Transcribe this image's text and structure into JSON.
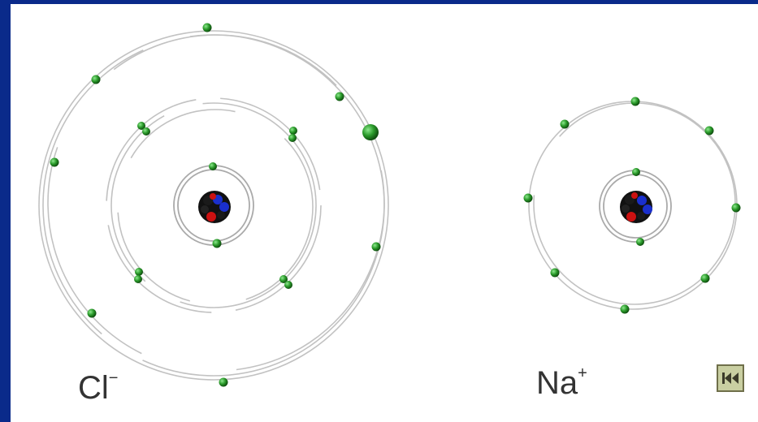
{
  "diagram": {
    "chlorine": {
      "symbol": "Cl",
      "charge": "−",
      "shells": [
        2,
        8,
        8
      ]
    },
    "sodium": {
      "symbol": "Na",
      "charge": "+",
      "shells": [
        2,
        8
      ]
    }
  },
  "controls": {
    "back_button_icon": "skip-back-icon"
  },
  "colors": {
    "background": "#0a2a8a",
    "electron": "#1f8a1f",
    "electron_highlight": "#7fe07f",
    "proton": "#cc1111",
    "neutron": "#1a2fcc",
    "orbit": "#bdbdbd"
  }
}
